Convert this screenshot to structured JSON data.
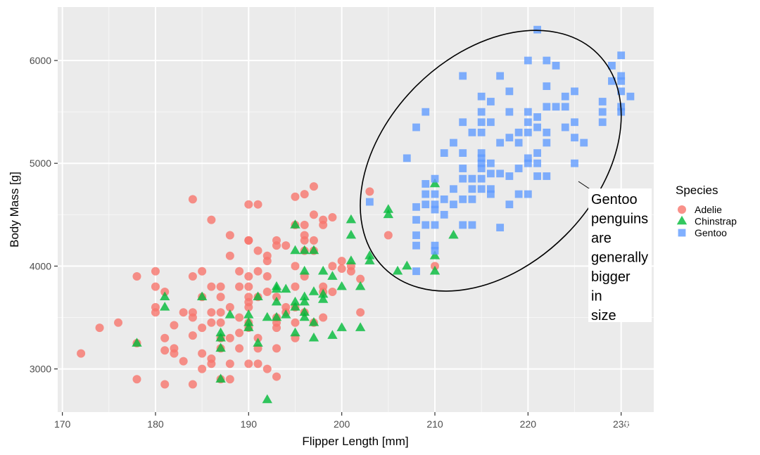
{
  "chart_data": {
    "type": "scatter",
    "title": "",
    "xlabel": "Flipper Length [mm]",
    "ylabel": "Body Mass [g]",
    "xlim": [
      169.5,
      233.5
    ],
    "ylim": [
      2580,
      6520
    ],
    "x_ticks": [
      170,
      180,
      190,
      200,
      210,
      220,
      230
    ],
    "x_tick_labels": [
      "170",
      "180",
      "190",
      "200",
      "210",
      "220",
      "230"
    ],
    "y_ticks": [
      3000,
      4000,
      5000,
      6000
    ],
    "y_tick_labels": [
      "3000",
      "4000",
      "5000",
      "6000"
    ],
    "grid": true,
    "background": "#ebebeb",
    "legend": {
      "title": "Species",
      "position": "right",
      "entries": [
        {
          "label": "Adelie",
          "shape": "circle",
          "color": "#f8766d"
        },
        {
          "label": "Chinstrap",
          "shape": "triangle",
          "color": "#00ba38"
        },
        {
          "label": "Gentoo",
          "shape": "square",
          "color": "#619cff"
        }
      ]
    },
    "series": [
      {
        "name": "Adelie",
        "shape": "circle",
        "color": "#f8766d",
        "points": [
          [
            172,
            3150
          ],
          [
            174,
            3400
          ],
          [
            176,
            3450
          ],
          [
            178,
            3900
          ],
          [
            178,
            2900
          ],
          [
            178,
            3250
          ],
          [
            180,
            3950
          ],
          [
            180,
            3800
          ],
          [
            180,
            3600
          ],
          [
            180,
            3550
          ],
          [
            181,
            3750
          ],
          [
            181,
            3300
          ],
          [
            181,
            3180
          ],
          [
            181,
            2850
          ],
          [
            182,
            3200
          ],
          [
            182,
            3150
          ],
          [
            182,
            3425
          ],
          [
            183,
            3550
          ],
          [
            183,
            3075
          ],
          [
            184,
            4650
          ],
          [
            184,
            3900
          ],
          [
            184,
            3550
          ],
          [
            184,
            3500
          ],
          [
            184,
            3325
          ],
          [
            184,
            2850
          ],
          [
            185,
            3950
          ],
          [
            185,
            3700
          ],
          [
            185,
            3400
          ],
          [
            185,
            3150
          ],
          [
            185,
            3000
          ],
          [
            186,
            4450
          ],
          [
            186,
            3800
          ],
          [
            186,
            3550
          ],
          [
            186,
            3450
          ],
          [
            186,
            3100
          ],
          [
            186,
            3050
          ],
          [
            187,
            3800
          ],
          [
            187,
            3700
          ],
          [
            187,
            3550
          ],
          [
            187,
            3450
          ],
          [
            187,
            3300
          ],
          [
            187,
            3200
          ],
          [
            187,
            2900
          ],
          [
            188,
            4300
          ],
          [
            188,
            4100
          ],
          [
            188,
            3600
          ],
          [
            188,
            3300
          ],
          [
            188,
            3050
          ],
          [
            188,
            2900
          ],
          [
            189,
            3950
          ],
          [
            189,
            3800
          ],
          [
            189,
            3500
          ],
          [
            189,
            3350
          ],
          [
            189,
            3200
          ],
          [
            190,
            4600
          ],
          [
            190,
            4250
          ],
          [
            190,
            4250
          ],
          [
            190,
            3900
          ],
          [
            190,
            3800
          ],
          [
            190,
            3700
          ],
          [
            190,
            3650
          ],
          [
            190,
            3600
          ],
          [
            190,
            3450
          ],
          [
            190,
            3400
          ],
          [
            190,
            3050
          ],
          [
            191,
            4600
          ],
          [
            191,
            4150
          ],
          [
            191,
            3950
          ],
          [
            191,
            3700
          ],
          [
            191,
            3300
          ],
          [
            191,
            3200
          ],
          [
            191,
            3050
          ],
          [
            192,
            4100
          ],
          [
            192,
            4050
          ],
          [
            192,
            3900
          ],
          [
            192,
            3750
          ],
          [
            192,
            3000
          ],
          [
            193,
            4250
          ],
          [
            193,
            4200
          ],
          [
            193,
            3700
          ],
          [
            193,
            3500
          ],
          [
            193,
            3450
          ],
          [
            193,
            3400
          ],
          [
            193,
            3200
          ],
          [
            193,
            2925
          ],
          [
            194,
            4200
          ],
          [
            194,
            3600
          ],
          [
            194,
            3550
          ],
          [
            195,
            4675
          ],
          [
            195,
            4400
          ],
          [
            195,
            4000
          ],
          [
            195,
            3800
          ],
          [
            195,
            3600
          ],
          [
            195,
            3450
          ],
          [
            195,
            3300
          ],
          [
            196,
            4700
          ],
          [
            196,
            4400
          ],
          [
            196,
            4300
          ],
          [
            196,
            4250
          ],
          [
            196,
            4150
          ],
          [
            196,
            3900
          ],
          [
            196,
            3550
          ],
          [
            197,
            4775
          ],
          [
            197,
            4500
          ],
          [
            197,
            4250
          ],
          [
            197,
            4150
          ],
          [
            197,
            3450
          ],
          [
            198,
            4450
          ],
          [
            198,
            4400
          ],
          [
            198,
            3800
          ],
          [
            198,
            3750
          ],
          [
            198,
            3500
          ],
          [
            199,
            4475
          ],
          [
            199,
            4000
          ],
          [
            199,
            3750
          ],
          [
            200,
            4050
          ],
          [
            200,
            3975
          ],
          [
            201,
            4000
          ],
          [
            201,
            3950
          ],
          [
            202,
            3875
          ],
          [
            202,
            3550
          ],
          [
            203,
            4725
          ],
          [
            205,
            4300
          ],
          [
            210,
            4000
          ]
        ]
      },
      {
        "name": "Chinstrap",
        "shape": "triangle",
        "color": "#00ba38",
        "points": [
          [
            178,
            3250
          ],
          [
            181,
            3700
          ],
          [
            181,
            3600
          ],
          [
            185,
            3700
          ],
          [
            187,
            3350
          ],
          [
            187,
            3300
          ],
          [
            187,
            3200
          ],
          [
            187,
            2900
          ],
          [
            188,
            3525
          ],
          [
            190,
            3450
          ],
          [
            190,
            3400
          ],
          [
            190,
            3525
          ],
          [
            191,
            3700
          ],
          [
            191,
            3250
          ],
          [
            192,
            3500
          ],
          [
            192,
            2700
          ],
          [
            193,
            3800
          ],
          [
            193,
            3650
          ],
          [
            193,
            3500
          ],
          [
            193,
            3775
          ],
          [
            194,
            3775
          ],
          [
            194,
            3525
          ],
          [
            195,
            4400
          ],
          [
            195,
            4150
          ],
          [
            195,
            3650
          ],
          [
            195,
            3600
          ],
          [
            195,
            3350
          ],
          [
            196,
            4150
          ],
          [
            196,
            3950
          ],
          [
            196,
            3700
          ],
          [
            196,
            3650
          ],
          [
            196,
            3550
          ],
          [
            196,
            3500
          ],
          [
            197,
            4150
          ],
          [
            197,
            3750
          ],
          [
            197,
            3450
          ],
          [
            197,
            3300
          ],
          [
            198,
            3950
          ],
          [
            198,
            3725
          ],
          [
            198,
            3675
          ],
          [
            199,
            3900
          ],
          [
            199,
            3325
          ],
          [
            200,
            3800
          ],
          [
            200,
            3400
          ],
          [
            201,
            4450
          ],
          [
            201,
            4300
          ],
          [
            201,
            4050
          ],
          [
            202,
            3800
          ],
          [
            202,
            3400
          ],
          [
            203,
            4100
          ],
          [
            203,
            4050
          ],
          [
            205,
            4550
          ],
          [
            205,
            4500
          ],
          [
            206,
            3950
          ],
          [
            207,
            4000
          ],
          [
            210,
            4800
          ],
          [
            210,
            4100
          ],
          [
            210,
            3950
          ],
          [
            212,
            4300
          ]
        ]
      },
      {
        "name": "Gentoo",
        "shape": "square",
        "color": "#619cff",
        "points": [
          [
            203,
            4625
          ],
          [
            207,
            5050
          ],
          [
            208,
            5350
          ],
          [
            208,
            4575
          ],
          [
            208,
            4450
          ],
          [
            208,
            4300
          ],
          [
            208,
            4200
          ],
          [
            208,
            3950
          ],
          [
            209,
            5500
          ],
          [
            209,
            4800
          ],
          [
            209,
            4700
          ],
          [
            209,
            4600
          ],
          [
            209,
            4400
          ],
          [
            210,
            4850
          ],
          [
            210,
            4700
          ],
          [
            210,
            4600
          ],
          [
            210,
            4550
          ],
          [
            210,
            4400
          ],
          [
            210,
            4200
          ],
          [
            210,
            4150
          ],
          [
            211,
            4650
          ],
          [
            211,
            4500
          ],
          [
            211,
            5100
          ],
          [
            212,
            5200
          ],
          [
            212,
            4750
          ],
          [
            212,
            4600
          ],
          [
            213,
            5850
          ],
          [
            213,
            5400
          ],
          [
            213,
            5100
          ],
          [
            213,
            4950
          ],
          [
            213,
            4850
          ],
          [
            213,
            4650
          ],
          [
            213,
            4400
          ],
          [
            214,
            5300
          ],
          [
            214,
            4850
          ],
          [
            214,
            4750
          ],
          [
            214,
            4650
          ],
          [
            214,
            4400
          ],
          [
            215,
            5650
          ],
          [
            215,
            5500
          ],
          [
            215,
            5400
          ],
          [
            215,
            5300
          ],
          [
            215,
            5100
          ],
          [
            215,
            5050
          ],
          [
            215,
            5000
          ],
          [
            215,
            4950
          ],
          [
            215,
            4850
          ],
          [
            215,
            4750
          ],
          [
            216,
            5600
          ],
          [
            216,
            5400
          ],
          [
            216,
            5000
          ],
          [
            216,
            4900
          ],
          [
            216,
            4750
          ],
          [
            216,
            4700
          ],
          [
            217,
            5850
          ],
          [
            217,
            5200
          ],
          [
            217,
            4900
          ],
          [
            217,
            4375
          ],
          [
            218,
            5700
          ],
          [
            218,
            5500
          ],
          [
            218,
            5250
          ],
          [
            218,
            4875
          ],
          [
            218,
            4600
          ],
          [
            219,
            5300
          ],
          [
            219,
            5200
          ],
          [
            219,
            4950
          ],
          [
            219,
            4700
          ],
          [
            220,
            6000
          ],
          [
            220,
            5500
          ],
          [
            220,
            5400
          ],
          [
            220,
            5300
          ],
          [
            220,
            5050
          ],
          [
            220,
            5000
          ],
          [
            220,
            4700
          ],
          [
            221,
            6300
          ],
          [
            221,
            5450
          ],
          [
            221,
            5350
          ],
          [
            221,
            5100
          ],
          [
            221,
            5000
          ],
          [
            221,
            4875
          ],
          [
            222,
            6000
          ],
          [
            222,
            5750
          ],
          [
            222,
            5550
          ],
          [
            222,
            5300
          ],
          [
            222,
            5200
          ],
          [
            222,
            4875
          ],
          [
            223,
            5950
          ],
          [
            223,
            5550
          ],
          [
            224,
            5550
          ],
          [
            224,
            5350
          ],
          [
            224,
            5650
          ],
          [
            225,
            5700
          ],
          [
            225,
            5400
          ],
          [
            225,
            5250
          ],
          [
            225,
            5000
          ],
          [
            226,
            5200
          ],
          [
            228,
            5600
          ],
          [
            228,
            5500
          ],
          [
            228,
            5400
          ],
          [
            229,
            5950
          ],
          [
            229,
            5800
          ],
          [
            230,
            6050
          ],
          [
            230,
            5850
          ],
          [
            230,
            5800
          ],
          [
            230,
            5700
          ],
          [
            230,
            5550
          ],
          [
            230,
            5500
          ],
          [
            231,
            5650
          ]
        ]
      }
    ],
    "annotations": [
      {
        "shape": "ellipse",
        "center": [
          216,
          5025
        ],
        "lines": [
          "Gentoo",
          "penguins",
          "are",
          "generally",
          "bigger",
          "in",
          "size"
        ]
      }
    ]
  },
  "watermark": "知乎 @圆仔"
}
